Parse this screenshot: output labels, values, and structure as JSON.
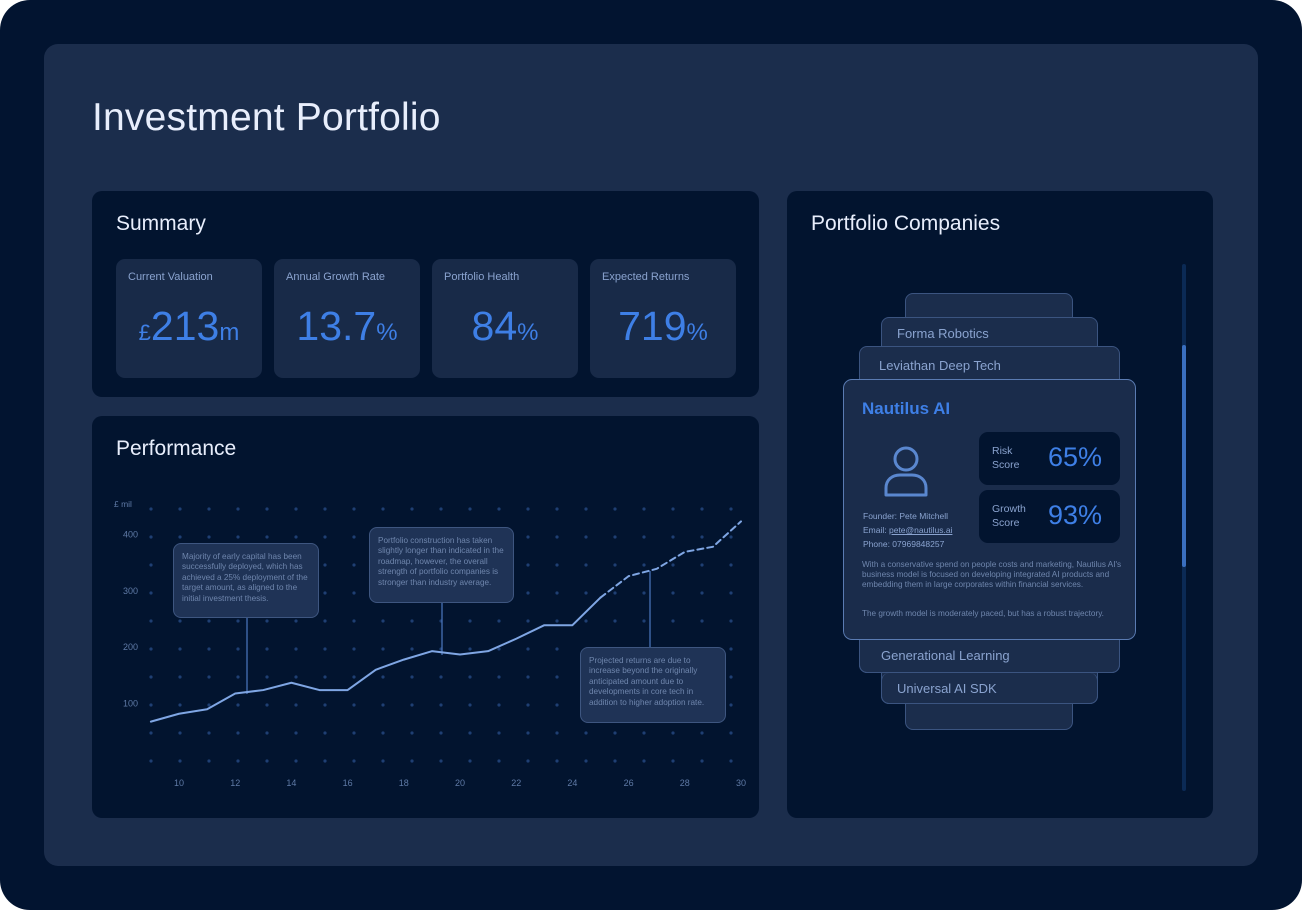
{
  "page": {
    "title": "Investment Portfolio"
  },
  "summary": {
    "title": "Summary",
    "metrics": [
      {
        "label": "Current Valuation",
        "prefix": "£",
        "value": "213",
        "suffix": "m"
      },
      {
        "label": "Annual Growth Rate",
        "prefix": "",
        "value": "13.7",
        "suffix": "%"
      },
      {
        "label": "Portfolio Health",
        "prefix": "",
        "value": "84",
        "suffix": "%"
      },
      {
        "label": "Expected Returns",
        "prefix": "",
        "value": "719",
        "suffix": "%"
      }
    ]
  },
  "performance": {
    "title": "Performance",
    "notes": [
      "Majority of early capital has been successfully deployed, which has achieved a 25% deployment of the target amount, as aligned to the initial investment thesis.",
      "Portfolio construction has taken slightly longer than indicated in the roadmap, however, the overall strength of portfolio companies is stronger than industry average.",
      "Projected returns are due to increase beyond the originally anticipated amount due to developments in core tech in addition to higher adoption rate."
    ]
  },
  "chart_data": {
    "type": "line",
    "ylabel": "£ mil",
    "x_ticks": [
      "10",
      "12",
      "14",
      "16",
      "18",
      "20",
      "22",
      "24",
      "26",
      "28",
      "30"
    ],
    "y_ticks": [
      "100",
      "200",
      "300",
      "400"
    ],
    "xlim": [
      9,
      30
    ],
    "ylim": [
      0,
      450
    ],
    "grid": "dots",
    "series": [
      {
        "style": "solid",
        "x": [
          9,
          10,
          11,
          12,
          13,
          14,
          15,
          16,
          17,
          18,
          19,
          20,
          21,
          22,
          23,
          24,
          25
        ],
        "y": [
          68,
          82,
          90,
          118,
          124,
          137,
          124,
          124,
          160,
          178,
          193,
          187,
          193,
          215,
          239,
          239,
          288
        ]
      },
      {
        "style": "dashed",
        "x": [
          25,
          26,
          27,
          28,
          29,
          30
        ],
        "y": [
          288,
          326,
          339,
          369,
          378,
          423
        ]
      }
    ]
  },
  "companies": {
    "title": "Portfolio Companies",
    "stack_above": [
      "Forma Robotics",
      "Leviathan Deep Tech"
    ],
    "stack_below": [
      "Generational Learning",
      "Universal AI SDK"
    ],
    "featured": {
      "name": "Nautilus AI",
      "founder": "Founder: Pete Mitchell",
      "email_label": "Email: ",
      "email": "pete@nautilus.ai",
      "phone": "Phone: 07969848257",
      "risk_label_1": "Risk",
      "risk_label_2": "Score",
      "risk_value": "65%",
      "growth_label_1": "Growth",
      "growth_label_2": "Score",
      "growth_value": "93%",
      "description": "With a conservative spend on people costs and marketing, Nautilus AI's business model is focused on developing integrated AI products and embedding them in large corporates within financial services.",
      "description_2": "The growth model is moderately paced, but has a robust trajectory."
    }
  },
  "colors": {
    "accent": "#3e7fe6",
    "background": "#021430",
    "panel": "#1b2d4c"
  }
}
